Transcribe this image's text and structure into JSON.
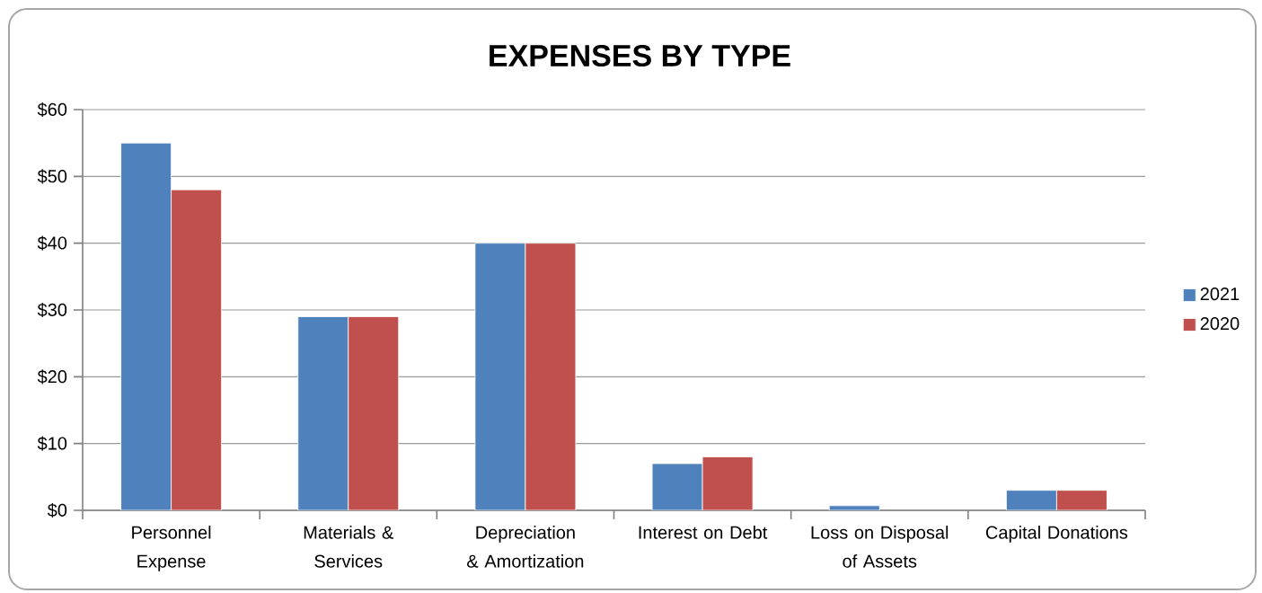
{
  "chart_data": {
    "type": "bar",
    "title": "EXPENSES BY TYPE",
    "categories": [
      "Personnel Expense",
      "Materials & Services",
      "Depreciation & Amortization",
      "Interest on Debt",
      "Loss on Disposal of Assets",
      "Capital Donations"
    ],
    "series": [
      {
        "name": "2021",
        "color": "#4f81bd",
        "values": [
          55,
          29,
          40,
          7,
          0.7,
          3
        ]
      },
      {
        "name": "2020",
        "color": "#c0504d",
        "values": [
          48,
          29,
          40,
          8,
          null,
          3
        ]
      }
    ],
    "ylim": [
      0,
      60
    ],
    "yticks": [
      {
        "value": 0,
        "label": "$0"
      },
      {
        "value": 10,
        "label": "$10"
      },
      {
        "value": 20,
        "label": "$20"
      },
      {
        "value": 30,
        "label": "$30"
      },
      {
        "value": 40,
        "label": "$40"
      },
      {
        "value": 50,
        "label": "$50"
      },
      {
        "value": 60,
        "label": "$60"
      }
    ],
    "grid": "y",
    "legend": "right"
  }
}
